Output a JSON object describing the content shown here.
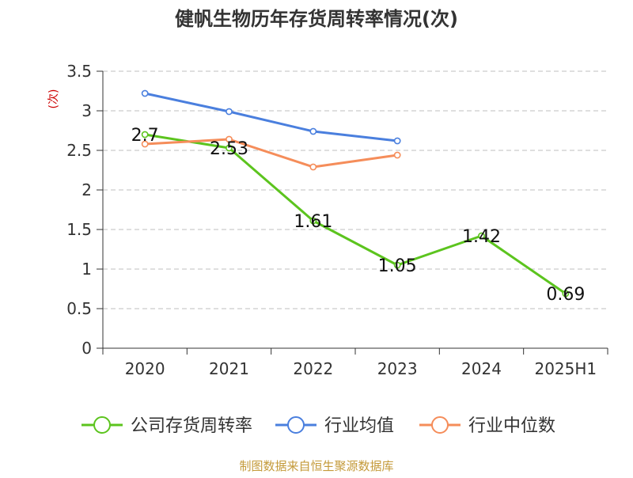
{
  "chart_data": {
    "type": "line",
    "title": "健帆生物历年存货周转率情况(次)",
    "ylabel": "(次)",
    "xlabel": "",
    "categories": [
      "2020",
      "2021",
      "2022",
      "2023",
      "2024",
      "2025H1"
    ],
    "ylim": [
      0,
      3.5
    ],
    "yticks": [
      "0",
      "0.5",
      "1",
      "1.5",
      "2",
      "2.5",
      "3",
      "3.5"
    ],
    "grid": true,
    "legend_position": "bottom",
    "series": [
      {
        "name": "公司存货周转率",
        "color": "#5cc41e",
        "values": [
          2.7,
          2.53,
          1.61,
          1.05,
          1.42,
          0.69
        ],
        "labels": [
          "2.7",
          "2.53",
          "1.61",
          "1.05",
          "1.42",
          "0.69"
        ]
      },
      {
        "name": "行业均值",
        "color": "#4a7fde",
        "values": [
          3.22,
          2.99,
          2.74,
          2.62,
          null,
          null
        ]
      },
      {
        "name": "行业中位数",
        "color": "#f58d5a",
        "values": [
          2.58,
          2.64,
          2.29,
          2.44,
          null,
          null
        ]
      }
    ]
  },
  "source": "制图数据来自恒生聚源数据库",
  "colors": {
    "ylabel": "#cc0000",
    "source": "#c49a3a",
    "grid": "#cccccc",
    "axis": "#333333"
  }
}
